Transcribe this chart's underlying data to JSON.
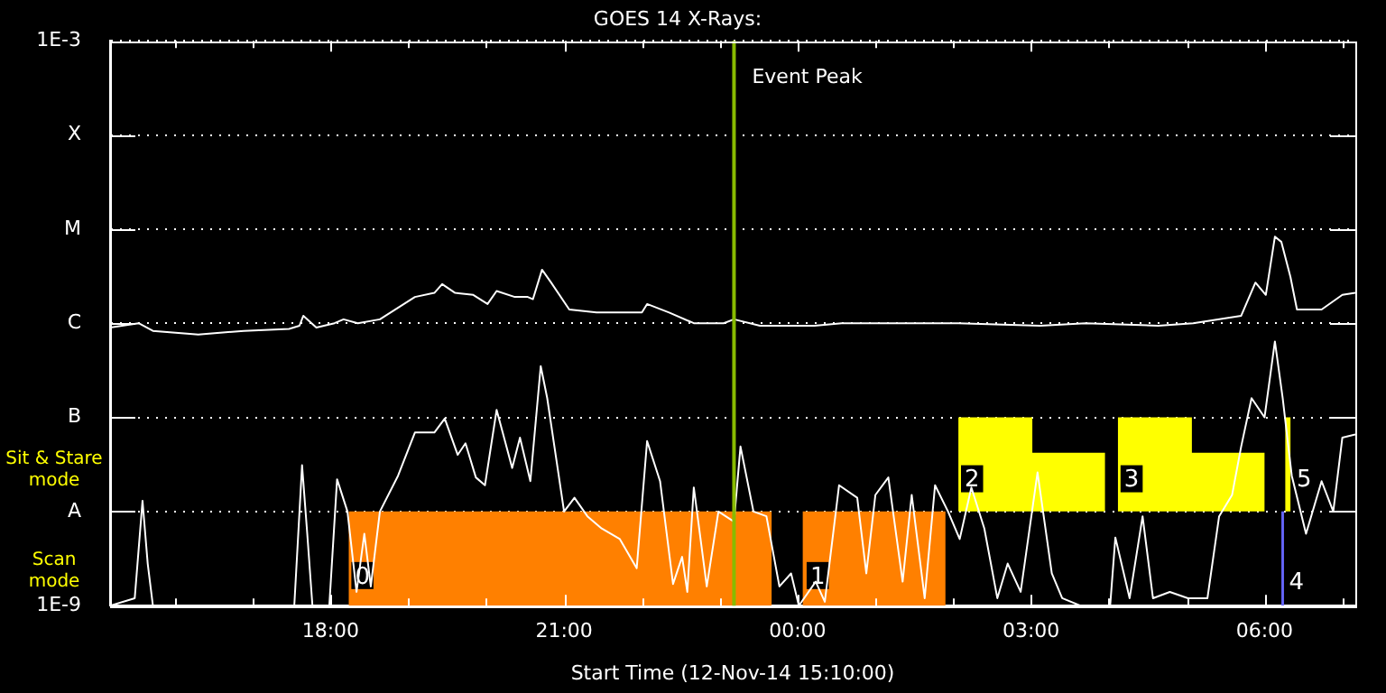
{
  "chart_data": {
    "type": "line",
    "title": "GOES 14 X-Rays:",
    "xlabel": "Start Time (12-Nov-14 15:10:00)",
    "xlim": [
      "--11-12T15:10",
      "--11-13T07:10"
    ],
    "xticks": [
      {
        "value": "--11-12T16:00",
        "label": null
      },
      {
        "value": "--11-12T17:00",
        "label": null
      },
      {
        "value": "--11-12T18:00",
        "label": "18:00"
      },
      {
        "value": "--11-12T19:00",
        "label": null
      },
      {
        "value": "--11-12T20:00",
        "label": null
      },
      {
        "value": "--11-12T21:00",
        "label": "21:00"
      },
      {
        "value": "--11-12T22:00",
        "label": null
      },
      {
        "value": "--11-12T23:00",
        "label": null
      },
      {
        "value": "--11-13T00:00",
        "label": "00:00"
      },
      {
        "value": "--11-13T01:00",
        "label": null
      },
      {
        "value": "--11-13T02:00",
        "label": null
      },
      {
        "value": "--11-13T03:00",
        "label": "03:00"
      },
      {
        "value": "--11-13T04:00",
        "label": null
      },
      {
        "value": "--11-13T05:00",
        "label": null
      },
      {
        "value": "--11-13T06:00",
        "label": "06:00"
      },
      {
        "value": "--11-13T07:00",
        "label": null
      }
    ],
    "ylim": [
      1e-09,
      0.001
    ],
    "yticks": [
      {
        "value": 1e-09,
        "label": "1E-9"
      },
      {
        "value": 1e-08,
        "label": "A"
      },
      {
        "value": 1e-07,
        "label": "B"
      },
      {
        "value": 1e-06,
        "label": "C"
      },
      {
        "value": 1e-05,
        "label": "M"
      },
      {
        "value": 0.0001,
        "label": "X"
      },
      {
        "value": 0.001,
        "label": "1E-3"
      }
    ],
    "log": "y",
    "grid": "y",
    "legend": false,
    "marker": "none",
    "series": [
      {
        "type": "area",
        "color": "#ff8000",
        "x": [
          "--11-12T18:14",
          "--11-12T18:14",
          "--11-12T23:40",
          "--11-12T23:40",
          "--11-12T23:41",
          "--11-13T00:04",
          "--11-13T00:04",
          "--11-13T01:54",
          "--11-13T01:54"
        ],
        "values": [
          1e-09,
          1e-08,
          1e-08,
          1e-09,
          null,
          1e-09,
          1e-08,
          1e-08,
          1e-09
        ]
      },
      {
        "type": "area",
        "color": "#ffff00",
        "x": [
          "--11-13T02:04",
          "--11-13T02:04",
          "--11-13T03:01",
          "--11-13T03:01",
          "--11-13T03:57",
          "--11-13T03:57",
          "--11-13T04:00",
          "--11-13T04:07",
          "--11-13T04:07",
          "--11-13T05:04",
          "--11-13T05:04",
          "--11-13T06:00",
          "--11-13T06:00",
          "--11-13T06:06",
          "--11-13T06:16",
          "--11-13T06:16",
          "--11-13T06:20",
          "--11-13T06:20"
        ],
        "values": [
          1e-08,
          1e-07,
          1e-07,
          4.2e-08,
          4.2e-08,
          1e-08,
          null,
          1e-08,
          1e-07,
          1e-07,
          4.2e-08,
          4.2e-08,
          1e-08,
          null,
          1e-08,
          1e-07,
          1e-07,
          1e-08
        ]
      },
      {
        "type": "area",
        "color": "#6666ff",
        "x": [
          "--11-13T06:13",
          "--11-13T06:13",
          "--11-13T06:15",
          "--11-13T06:15"
        ],
        "values": [
          1e-09,
          1e-08,
          1e-08,
          1e-09
        ]
      },
      {
        "color": "#ffffff",
        "x": [
          "--11-12T15:10",
          "--11-12T15:32",
          "--11-12T15:43",
          "--11-12T16:18",
          "--11-12T16:53",
          "--11-12T17:28",
          "--11-12T17:36",
          "--11-12T17:39",
          "--11-12T17:49",
          "--11-12T18:03",
          "--11-12T18:10",
          "--11-12T18:21",
          "--11-12T18:38",
          "--11-12T19:05",
          "--11-12T19:20",
          "--11-12T19:26",
          "--11-12T19:36",
          "--11-12T19:50",
          "--11-12T20:01",
          "--11-12T20:08",
          "--11-12T20:22",
          "--11-12T20:32",
          "--11-12T20:36",
          "--11-12T20:43",
          "--11-12T20:50",
          "--11-12T21:04",
          "--11-12T21:25",
          "--11-12T22:00",
          "--11-12T22:04",
          "--11-12T22:21",
          "--11-12T22:40",
          "--11-12T23:03",
          "--11-12T23:11",
          "--11-12T23:31",
          "--11-13T00:13",
          "--11-13T00:34",
          "--11-13T01:08",
          "--11-13T02:04",
          "--11-13T03:07",
          "--11-13T03:42",
          "--11-13T04:38",
          "--11-13T05:05",
          "--11-13T05:42",
          "--11-13T05:53",
          "--11-13T06:01",
          "--11-13T06:08",
          "--11-13T06:13",
          "--11-13T06:20",
          "--11-13T06:25",
          "--11-13T06:44",
          "--11-13T07:00",
          "--11-13T07:10"
        ],
        "values": [
          9e-07,
          1e-06,
          8.3e-07,
          7.6e-07,
          8.3e-07,
          8.7e-07,
          9.4e-07,
          1.2e-06,
          9e-07,
          1e-06,
          1.1e-06,
          1e-06,
          1.1e-06,
          1.9e-06,
          2.1e-06,
          2.6e-06,
          2.1e-06,
          2e-06,
          1.6e-06,
          2.2e-06,
          1.9e-06,
          1.9e-06,
          1.8e-06,
          3.7e-06,
          2.7e-06,
          1.4e-06,
          1.3e-06,
          1.3e-06,
          1.6e-06,
          1.3e-06,
          1e-06,
          1e-06,
          1.1e-06,
          9.4e-07,
          9.4e-07,
          1e-06,
          1e-06,
          1e-06,
          9.4e-07,
          1e-06,
          9.4e-07,
          1e-06,
          1.2e-06,
          2.7e-06,
          2e-06,
          8.3e-06,
          7.3e-06,
          3.1e-06,
          1.4e-06,
          1.4e-06,
          2e-06,
          2.1e-06
        ]
      },
      {
        "color": "#ffffff",
        "x": [
          "--11-12T15:10",
          "--11-12T15:29",
          "--11-12T15:35",
          "--11-12T15:39",
          "--11-12T15:43",
          "--11-12T17:32",
          "--11-12T17:38",
          "--11-12T17:42",
          "--11-12T17:46",
          "--11-12T17:59",
          "--11-12T18:05",
          "--11-12T18:13",
          "--11-12T18:20",
          "--11-12T18:26",
          "--11-12T18:31",
          "--11-12T18:38",
          "--11-12T18:52",
          "--11-12T19:05",
          "--11-12T19:20",
          "--11-12T19:28",
          "--11-12T19:38",
          "--11-12T19:44",
          "--11-12T19:52",
          "--11-12T19:59",
          "--11-12T20:08",
          "--11-12T20:20",
          "--11-12T20:26",
          "--11-12T20:34",
          "--11-12T20:42",
          "--11-12T20:47",
          "--11-12T21:00",
          "--11-12T21:08",
          "--11-12T21:18",
          "--11-12T21:29",
          "--11-12T21:43",
          "--11-12T21:56",
          "--11-12T22:04",
          "--11-12T22:14",
          "--11-12T22:24",
          "--11-12T22:31",
          "--11-12T22:35",
          "--11-12T22:40",
          "--11-12T22:50",
          "--11-12T22:59",
          "--11-12T23:11",
          "--11-12T23:16",
          "--11-12T23:26",
          "--11-12T23:36",
          "--11-12T23:46",
          "--11-12T23:55",
          "--11-13T00:01",
          "--11-13T00:14",
          "--11-13T00:21",
          "--11-13T00:32",
          "--11-13T00:46",
          "--11-13T00:53",
          "--11-13T01:00",
          "--11-13T01:10",
          "--11-13T01:21",
          "--11-13T01:28",
          "--11-13T01:38",
          "--11-13T01:46",
          "--11-13T01:56",
          "--11-13T02:05",
          "--11-13T02:14",
          "--11-13T02:24",
          "--11-13T02:34",
          "--11-13T02:42",
          "--11-13T02:52",
          "--11-13T03:05",
          "--11-13T03:16",
          "--11-13T03:24",
          "--11-13T03:38",
          "--11-13T04:01",
          "--11-13T04:05",
          "--11-13T04:16",
          "--11-13T04:26",
          "--11-13T04:34",
          "--11-13T04:47",
          "--11-13T05:01",
          "--11-13T05:16",
          "--11-13T05:25",
          "--11-13T05:35",
          "--11-13T05:42",
          "--11-13T05:50",
          "--11-13T06:00",
          "--11-13T06:08",
          "--11-13T06:14",
          "--11-13T06:21",
          "--11-13T06:32",
          "--11-13T06:44",
          "--11-13T06:53",
          "--11-13T07:00",
          "--11-13T07:10"
        ],
        "values": [
          1e-09,
          1.2e-09,
          1.3e-08,
          2.8e-09,
          1e-09,
          1e-09,
          3.1e-08,
          5.8e-09,
          1e-09,
          1e-09,
          2.2e-08,
          1e-08,
          1.4e-09,
          5.8e-09,
          1.6e-09,
          1e-08,
          2.4e-08,
          6.9e-08,
          6.9e-08,
          9.7e-08,
          4e-08,
          5.3e-08,
          2.3e-08,
          1.9e-08,
          1.2e-07,
          2.9e-08,
          6.1e-08,
          2.1e-08,
          3.5e-07,
          1.6e-07,
          1e-08,
          1.4e-08,
          8.9e-09,
          6.6e-09,
          5.1e-09,
          2.5e-09,
          5.6e-08,
          2.1e-08,
          1.7e-09,
          3.3e-09,
          1.4e-09,
          1.8e-08,
          1.6e-09,
          1e-08,
          7.8e-09,
          4.9e-08,
          1e-08,
          8.9e-09,
          1.6e-09,
          2.2e-09,
          1e-09,
          1.8e-09,
          1.1e-09,
          1.9e-08,
          1.4e-08,
          2.2e-09,
          1.5e-08,
          2.3e-08,
          1.8e-09,
          1.5e-08,
          1.2e-09,
          1.9e-08,
          1e-08,
          5.1e-09,
          1.8e-08,
          6.6e-09,
          1.2e-09,
          2.8e-09,
          1.4e-09,
          2.6e-08,
          2.2e-09,
          1.2e-09,
          1e-09,
          1e-09,
          5.3e-09,
          1.2e-09,
          8.9e-09,
          1.2e-09,
          1.4e-09,
          1.2e-09,
          1.2e-09,
          8.9e-09,
          1.5e-08,
          4.9e-08,
          1.6e-07,
          1e-07,
          6.4e-07,
          1.6e-07,
          2.4e-08,
          5.8e-09,
          2.1e-08,
          1e-08,
          6.1e-08,
          6.6e-08
        ]
      }
    ],
    "ref_lines": [
      {
        "axis": "x",
        "value": "--11-12T23:11",
        "label": "Event Peak",
        "color": "#88bb00"
      }
    ],
    "annotations": [
      "Sit & Stare mode",
      "Scan mode",
      {
        "text": "0",
        "x": "--11-12T18:16",
        "y": 1.5e-09
      },
      {
        "text": "1",
        "x": "--11-13T00:07",
        "y": 1.5e-09
      },
      {
        "text": "2",
        "x": "--11-13T02:06",
        "y": 1.6e-08
      },
      {
        "text": "3",
        "x": "--11-13T04:09",
        "y": 1.6e-08
      },
      {
        "text": "4",
        "x": "--11-13T06:16",
        "y": 1.3e-09
      },
      {
        "text": "5",
        "x": "--11-13T06:22",
        "y": 1.6e-08
      }
    ]
  }
}
